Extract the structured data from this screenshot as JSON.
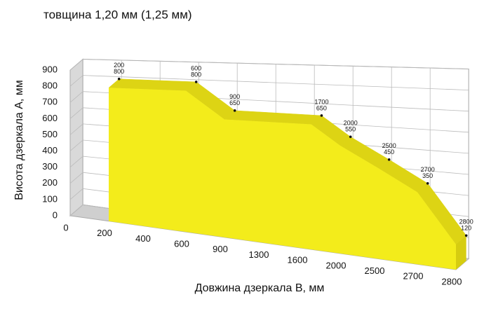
{
  "chart_data": {
    "type": "area",
    "title": "товщина 1,20 мм (1,25 мм)",
    "x_label": "Довжина дзеркала В, мм",
    "y_label": "Висота дзеркала А, мм",
    "xticks": [
      0,
      200,
      400,
      600,
      900,
      1300,
      1600,
      2000,
      2500,
      2700,
      2800
    ],
    "x": [
      200,
      600,
      900,
      1700,
      2000,
      2500,
      2700,
      2800
    ],
    "values": [
      800,
      800,
      650,
      650,
      550,
      450,
      350,
      120
    ],
    "color": "#f3ec1b",
    "ylim": [
      0,
      900
    ],
    "yticks": [
      0,
      100,
      200,
      300,
      400,
      500,
      600,
      700,
      800,
      900
    ],
    "grid": true
  }
}
